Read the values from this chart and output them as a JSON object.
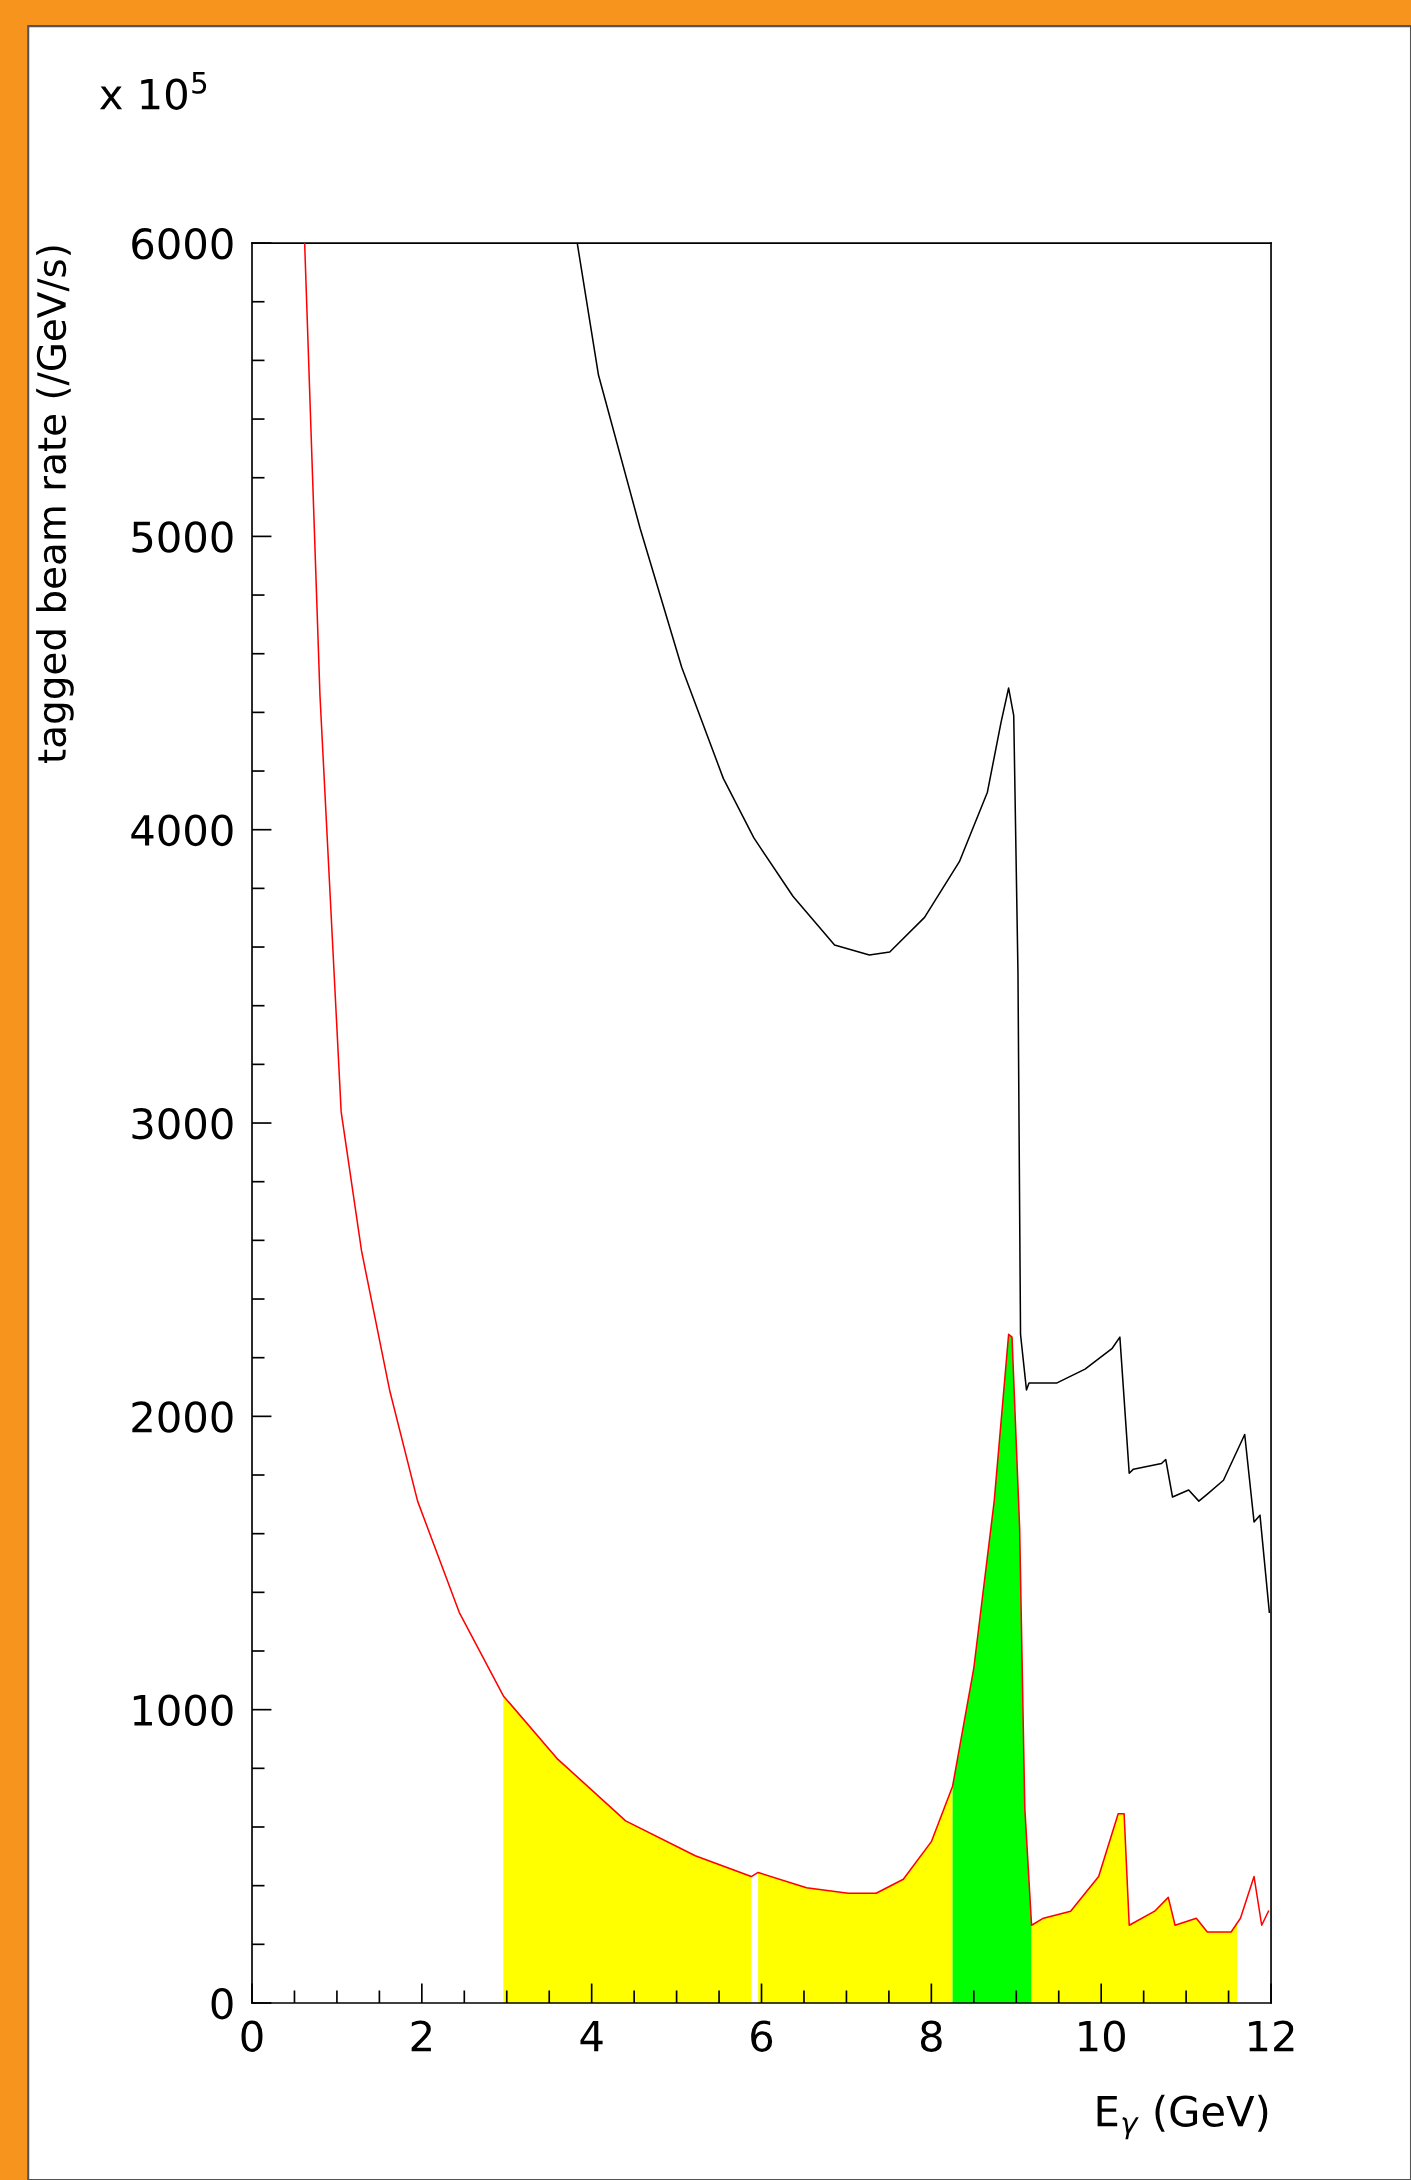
{
  "chart_data": {
    "type": "line",
    "xlabel": "E$_{γ}$ (GeV)",
    "ylabel": "tagged beam rate (/GeV/s)",
    "annotations": [
      "x 10$^{5}$"
    ],
    "xlim": [
      0,
      12
    ],
    "xticks": [
      0,
      {
        "value": 0.5,
        "label": null
      },
      {
        "value": 1,
        "label": null
      },
      {
        "value": 1.5,
        "label": null
      },
      2,
      {
        "value": 2.5,
        "label": null
      },
      {
        "value": 3,
        "label": null
      },
      {
        "value": 3.5,
        "label": null
      },
      4,
      {
        "value": 4.5,
        "label": null
      },
      {
        "value": 5,
        "label": null
      },
      {
        "value": 5.5,
        "label": null
      },
      6,
      {
        "value": 6.5,
        "label": null
      },
      {
        "value": 7,
        "label": null
      },
      {
        "value": 7.5,
        "label": null
      },
      8,
      {
        "value": 8.5,
        "label": null
      },
      {
        "value": 9,
        "label": null
      },
      {
        "value": 9.5,
        "label": null
      },
      10,
      {
        "value": 10.5,
        "label": null
      },
      {
        "value": 11,
        "label": null
      },
      {
        "value": 11.5,
        "label": null
      },
      12
    ],
    "ylim": [
      0,
      6000
    ],
    "yticks": [
      0,
      {
        "value": 200,
        "label": null
      },
      {
        "value": 400,
        "label": null
      },
      {
        "value": 600,
        "label": null
      },
      {
        "value": 800,
        "label": null
      },
      1000,
      {
        "value": 1200,
        "label": null
      },
      {
        "value": 1400,
        "label": null
      },
      {
        "value": 1600,
        "label": null
      },
      {
        "value": 1800,
        "label": null
      },
      2000,
      {
        "value": 2200,
        "label": null
      },
      {
        "value": 2400,
        "label": null
      },
      {
        "value": 2600,
        "label": null
      },
      {
        "value": 2800,
        "label": null
      },
      3000,
      {
        "value": 3200,
        "label": null
      },
      {
        "value": 3400,
        "label": null
      },
      {
        "value": 3600,
        "label": null
      },
      {
        "value": 3800,
        "label": null
      },
      4000,
      {
        "value": 4200,
        "label": null
      },
      {
        "value": 4400,
        "label": null
      },
      {
        "value": 4600,
        "label": null
      },
      {
        "value": 4800,
        "label": null
      },
      5000,
      {
        "value": 5200,
        "label": null
      },
      {
        "value": 5400,
        "label": null
      },
      {
        "value": 5600,
        "label": null
      },
      {
        "value": 5800,
        "label": null
      },
      6000
    ],
    "series": [
      {
        "type": "area",
        "color": "#ffff00",
        "x": [
          2.96,
          3.59,
          4.4,
          5.22,
          5.88
        ],
        "values": [
          1047,
          834,
          621,
          502,
          431
        ]
      },
      {
        "type": "area",
        "color": "#ffff00",
        "x": [
          5.96,
          6.53,
          7.02,
          7.35,
          7.67,
          8.0,
          8.25
        ],
        "values": [
          445,
          393,
          374,
          374,
          422,
          550,
          739
        ]
      },
      {
        "type": "area",
        "color": "#00ff00",
        "x": [
          8.25,
          8.5,
          8.74,
          8.91,
          8.95,
          9.04,
          9.1,
          9.18
        ],
        "values": [
          739,
          1142,
          1711,
          2280,
          2270,
          1616,
          668,
          265
        ]
      },
      {
        "type": "area",
        "color": "#ffff00",
        "x": [
          9.18,
          9.32,
          9.64,
          9.97,
          10.2,
          10.27,
          10.33,
          10.63,
          10.79,
          10.87,
          11.12,
          11.25,
          11.53,
          11.6
        ],
        "values": [
          265,
          289,
          313,
          431,
          645,
          645,
          265,
          313,
          360,
          265,
          289,
          242,
          242,
          270
        ]
      },
      {
        "color": "#000000",
        "x": [
          3.83,
          4.08,
          4.57,
          5.06,
          5.55,
          5.91,
          6.37,
          6.86,
          7.27,
          7.51,
          7.92,
          8.33,
          8.66,
          8.82,
          8.91,
          8.97,
          9.02,
          9.05,
          9.12,
          9.15,
          9.48,
          9.81,
          10.13,
          10.22,
          10.33,
          10.38,
          10.71,
          10.76,
          10.84,
          11.03,
          11.15,
          11.25,
          11.44,
          11.69,
          11.8,
          11.87,
          11.98
        ],
        "values": [
          6000,
          5550,
          5028,
          4554,
          4175,
          3972,
          3773,
          3607,
          3573,
          3583,
          3701,
          3891,
          4128,
          4365,
          4483,
          4389,
          3512,
          2280,
          2090,
          2114,
          2114,
          2161,
          2232,
          2270,
          1806,
          1820,
          1839,
          1853,
          1725,
          1749,
          1711,
          1735,
          1782,
          1938,
          1640,
          1663,
          1332
        ]
      },
      {
        "color": "#ff0000",
        "x": [
          0.62,
          0.8,
          1.05,
          1.29,
          1.62,
          1.95,
          2.44,
          2.96,
          3.59,
          4.4,
          5.22,
          5.88,
          5.96,
          6.53,
          7.02,
          7.35,
          7.67,
          8.0,
          8.25,
          8.5,
          8.74,
          8.91,
          8.95,
          9.04,
          9.1,
          9.18,
          9.32,
          9.64,
          9.97,
          10.2,
          10.27,
          10.33,
          10.63,
          10.79,
          10.87,
          11.12,
          11.25,
          11.53,
          11.64,
          11.8,
          11.89,
          11.97
        ],
        "values": [
          6000,
          4460,
          3038,
          2564,
          2090,
          1711,
          1332,
          1047,
          834,
          621,
          502,
          431,
          445,
          393,
          374,
          374,
          422,
          550,
          739,
          1142,
          1711,
          2280,
          2270,
          1616,
          668,
          265,
          289,
          313,
          431,
          645,
          645,
          265,
          313,
          360,
          265,
          289,
          242,
          242,
          289,
          431,
          265,
          313
        ]
      }
    ]
  }
}
